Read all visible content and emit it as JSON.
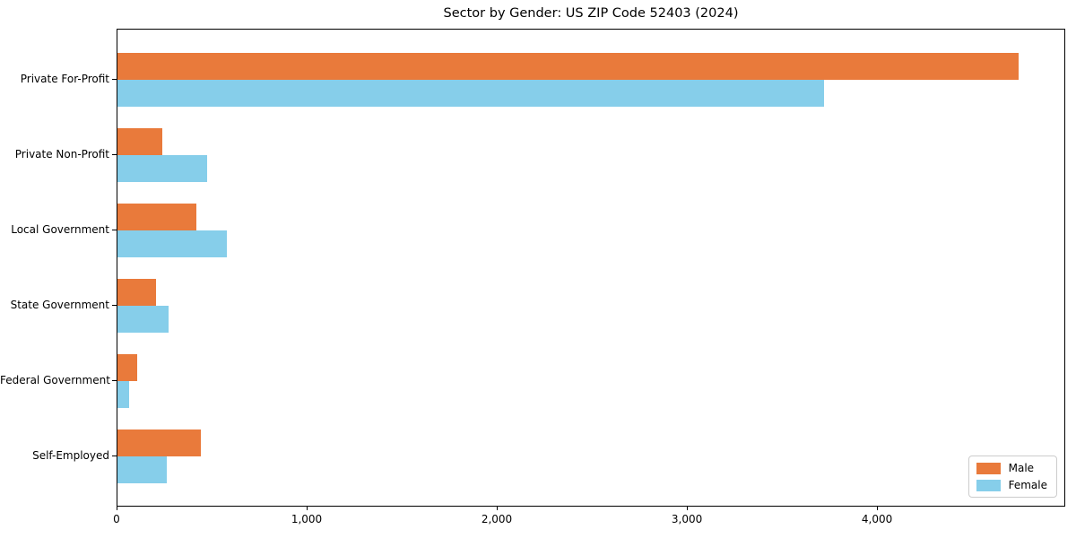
{
  "title": "Sector by Gender: US ZIP Code 52403 (2024)",
  "colors": {
    "male": "#E97A3B",
    "female": "#86CEEA",
    "axis": "#000000",
    "legend_border": "#cccccc",
    "background": "#ffffff"
  },
  "legend": {
    "position": "lower right",
    "entries": [
      {
        "label": "Male",
        "color": "#E97A3B"
      },
      {
        "label": "Female",
        "color": "#86CEEA"
      }
    ]
  },
  "chart_data": {
    "type": "bar",
    "orientation": "horizontal",
    "title": "Sector by Gender: US ZIP Code 52403 (2024)",
    "categories": [
      "Private For-Profit",
      "Private Non-Profit",
      "Local Government",
      "State Government",
      "Federal Government",
      "Self-Employed"
    ],
    "series": [
      {
        "name": "Male",
        "color": "#E97A3B",
        "values": [
          4740,
          237,
          417,
          204,
          102,
          440
        ]
      },
      {
        "name": "Female",
        "color": "#86CEEA",
        "values": [
          3717,
          473,
          577,
          270,
          59,
          258
        ]
      }
    ],
    "xlabel": "",
    "ylabel": "",
    "xlim": [
      0,
      4990
    ],
    "x_ticks": [
      0,
      1000,
      2000,
      3000,
      4000
    ],
    "x_tick_labels": [
      "0",
      "1,000",
      "2,000",
      "3,000",
      "4,000"
    ],
    "grid": false,
    "legend_position": "lower right"
  }
}
